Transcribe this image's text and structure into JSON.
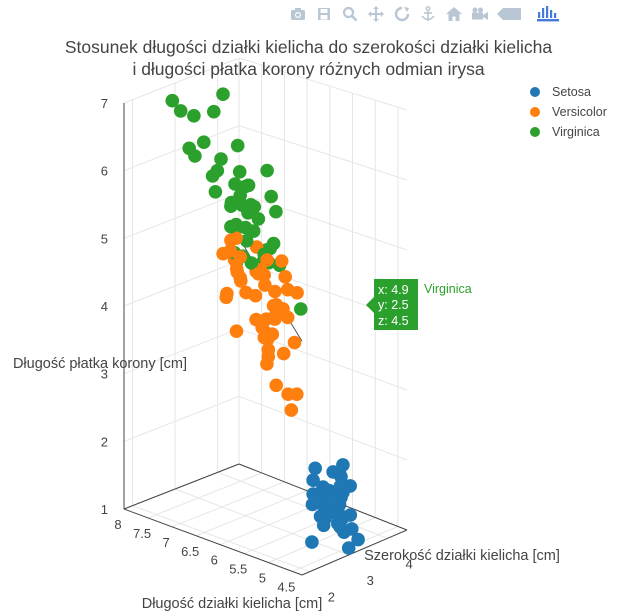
{
  "title": {
    "line1": "Stosunek długości działki kielicha do szerokości działki kielicha",
    "line2": "i długości płatka korony różnych odmian irysa"
  },
  "modebar": {
    "buttons": [
      {
        "name": "camera-icon"
      },
      {
        "name": "save-icon"
      },
      {
        "name": "zoom-icon"
      },
      {
        "name": "pan-icon"
      },
      {
        "name": "orbit-rotation-icon"
      },
      {
        "name": "turntable-rotation-icon"
      },
      {
        "name": "home-icon"
      },
      {
        "name": "camera-view-icon"
      },
      {
        "name": "hover-icon"
      },
      {
        "name": "plotly-logo-icon"
      }
    ],
    "colors": {
      "icon": "#b9c6d3",
      "brand": "#447adb"
    }
  },
  "legend": [
    {
      "label": "Setosa",
      "color": "#1f77b4"
    },
    {
      "label": "Versicolor",
      "color": "#ff7f0e"
    },
    {
      "label": "Virginica",
      "color": "#2ca02c"
    }
  ],
  "tooltip": {
    "x": "x: 4.9",
    "y": "y: 2.5",
    "z": "z: 4.5",
    "series": "Virginica",
    "color": "#2ca02c"
  },
  "chart_data": {
    "type": "scatter",
    "subtype": "scatter3d",
    "xlabel": "Długość działki kielicha [cm]",
    "ylabel": "Szerokość działki kielicha [cm]",
    "zlabel": "Długość płatka korony [cm]",
    "x_ticks": [
      "8",
      "7.5",
      "7",
      "6.5",
      "6",
      "5.5",
      "5",
      "4.5"
    ],
    "y_ticks": [
      "2",
      "3",
      "4"
    ],
    "z_ticks": [
      "1",
      "2",
      "3",
      "4",
      "5",
      "6",
      "7"
    ],
    "xlim": [
      4.3,
      8.0
    ],
    "ylim": [
      1.8,
      4.5
    ],
    "zlim": [
      1,
      7
    ],
    "series": [
      {
        "name": "Setosa",
        "color": "#1f77b4",
        "points": [
          [
            5.1,
            3.5,
            1.4
          ],
          [
            4.9,
            3.0,
            1.4
          ],
          [
            4.7,
            3.2,
            1.3
          ],
          [
            4.6,
            3.1,
            1.5
          ],
          [
            5.0,
            3.6,
            1.4
          ],
          [
            5.4,
            3.9,
            1.7
          ],
          [
            4.6,
            3.4,
            1.4
          ],
          [
            5.0,
            3.4,
            1.5
          ],
          [
            4.4,
            2.9,
            1.4
          ],
          [
            4.9,
            3.1,
            1.5
          ],
          [
            5.4,
            3.7,
            1.5
          ],
          [
            4.8,
            3.4,
            1.6
          ],
          [
            4.8,
            3.0,
            1.4
          ],
          [
            4.3,
            3.0,
            1.1
          ],
          [
            5.8,
            4.0,
            1.2
          ],
          [
            5.7,
            4.4,
            1.5
          ],
          [
            5.4,
            3.9,
            1.3
          ],
          [
            5.1,
            3.5,
            1.4
          ],
          [
            5.7,
            3.8,
            1.7
          ],
          [
            5.1,
            3.8,
            1.5
          ],
          [
            5.4,
            3.4,
            1.7
          ],
          [
            5.1,
            3.7,
            1.5
          ],
          [
            4.6,
            3.6,
            1.0
          ],
          [
            5.1,
            3.3,
            1.7
          ],
          [
            4.8,
            3.4,
            1.9
          ],
          [
            5.0,
            3.0,
            1.6
          ],
          [
            5.0,
            3.4,
            1.6
          ],
          [
            5.2,
            3.5,
            1.5
          ],
          [
            5.2,
            3.4,
            1.4
          ],
          [
            4.7,
            3.2,
            1.6
          ],
          [
            4.8,
            3.1,
            1.6
          ],
          [
            5.4,
            3.4,
            1.5
          ],
          [
            5.2,
            4.1,
            1.5
          ],
          [
            5.5,
            4.2,
            1.4
          ],
          [
            4.9,
            3.1,
            1.5
          ],
          [
            5.0,
            3.2,
            1.2
          ],
          [
            5.5,
            3.5,
            1.3
          ],
          [
            4.4,
            3.0,
            1.3
          ],
          [
            5.1,
            3.4,
            1.5
          ],
          [
            5.0,
            3.5,
            1.3
          ],
          [
            4.5,
            2.3,
            1.3
          ],
          [
            4.4,
            3.2,
            1.3
          ],
          [
            5.0,
            3.5,
            1.6
          ],
          [
            5.1,
            3.8,
            1.9
          ],
          [
            4.8,
            3.0,
            1.4
          ],
          [
            5.1,
            3.8,
            1.6
          ],
          [
            4.6,
            3.2,
            1.4
          ],
          [
            5.3,
            3.7,
            1.5
          ],
          [
            5.0,
            3.3,
            1.4
          ]
        ]
      },
      {
        "name": "Versicolor",
        "color": "#ff7f0e",
        "points": [
          [
            7.0,
            3.2,
            4.7
          ],
          [
            6.4,
            3.2,
            4.5
          ],
          [
            6.9,
            3.1,
            4.9
          ],
          [
            5.5,
            2.3,
            4.0
          ],
          [
            6.5,
            2.8,
            4.6
          ],
          [
            5.7,
            2.8,
            4.5
          ],
          [
            6.3,
            3.3,
            4.7
          ],
          [
            4.9,
            2.4,
            3.3
          ],
          [
            6.6,
            2.9,
            4.6
          ],
          [
            5.2,
            2.7,
            3.9
          ],
          [
            5.0,
            2.0,
            3.5
          ],
          [
            5.9,
            3.0,
            4.2
          ],
          [
            6.0,
            2.2,
            4.0
          ],
          [
            6.1,
            2.9,
            4.7
          ],
          [
            5.6,
            2.9,
            3.6
          ],
          [
            6.7,
            3.1,
            4.4
          ],
          [
            5.6,
            3.0,
            4.5
          ],
          [
            5.8,
            2.7,
            4.1
          ],
          [
            6.2,
            2.2,
            4.5
          ],
          [
            5.6,
            2.5,
            3.9
          ],
          [
            5.9,
            3.2,
            4.8
          ],
          [
            6.1,
            2.8,
            4.0
          ],
          [
            6.3,
            2.5,
            4.9
          ],
          [
            6.1,
            2.8,
            4.7
          ],
          [
            6.4,
            2.9,
            4.3
          ],
          [
            6.6,
            3.0,
            4.4
          ],
          [
            6.8,
            2.8,
            4.8
          ],
          [
            6.7,
            3.0,
            5.0
          ],
          [
            6.0,
            2.9,
            4.5
          ],
          [
            5.7,
            2.6,
            3.5
          ],
          [
            5.5,
            2.4,
            3.8
          ],
          [
            5.5,
            2.4,
            3.7
          ],
          [
            5.8,
            2.7,
            3.9
          ],
          [
            6.0,
            2.7,
            5.1
          ],
          [
            5.4,
            3.0,
            4.5
          ],
          [
            6.0,
            3.4,
            4.5
          ],
          [
            6.7,
            3.1,
            4.7
          ],
          [
            6.3,
            2.3,
            4.4
          ],
          [
            5.6,
            3.0,
            4.1
          ],
          [
            5.5,
            2.5,
            4.0
          ],
          [
            5.5,
            2.6,
            4.4
          ],
          [
            6.1,
            3.0,
            4.6
          ],
          [
            5.8,
            2.6,
            4.0
          ],
          [
            5.0,
            2.3,
            3.3
          ],
          [
            5.6,
            2.7,
            4.2
          ],
          [
            5.7,
            3.0,
            4.2
          ],
          [
            5.7,
            2.9,
            4.2
          ],
          [
            6.2,
            2.9,
            4.3
          ],
          [
            5.1,
            2.5,
            3.0
          ],
          [
            5.7,
            2.8,
            4.1
          ]
        ]
      },
      {
        "name": "Virginica",
        "color": "#2ca02c",
        "points": [
          [
            6.3,
            3.3,
            6.0
          ],
          [
            5.8,
            2.7,
            5.1
          ],
          [
            7.1,
            3.0,
            5.9
          ],
          [
            6.3,
            2.9,
            5.6
          ],
          [
            6.5,
            3.0,
            5.8
          ],
          [
            7.6,
            3.0,
            6.6
          ],
          [
            4.9,
            2.5,
            4.5
          ],
          [
            7.3,
            2.9,
            6.3
          ],
          [
            6.7,
            2.5,
            5.8
          ],
          [
            7.2,
            3.6,
            6.1
          ],
          [
            6.5,
            3.2,
            5.1
          ],
          [
            6.4,
            2.7,
            5.3
          ],
          [
            6.8,
            3.0,
            5.5
          ],
          [
            5.7,
            2.5,
            5.0
          ],
          [
            5.8,
            2.8,
            5.1
          ],
          [
            6.4,
            3.2,
            5.3
          ],
          [
            6.5,
            3.0,
            5.5
          ],
          [
            7.7,
            3.8,
            6.7
          ],
          [
            7.7,
            2.6,
            6.9
          ],
          [
            6.0,
            2.2,
            5.0
          ],
          [
            6.9,
            3.2,
            5.7
          ],
          [
            5.6,
            2.8,
            4.9
          ],
          [
            7.7,
            2.8,
            6.7
          ],
          [
            6.3,
            2.7,
            4.9
          ],
          [
            6.7,
            3.3,
            5.7
          ],
          [
            7.2,
            3.2,
            6.0
          ],
          [
            6.2,
            2.8,
            4.8
          ],
          [
            6.1,
            3.0,
            4.9
          ],
          [
            6.4,
            2.8,
            5.6
          ],
          [
            7.2,
            3.0,
            5.8
          ],
          [
            7.4,
            2.8,
            6.1
          ],
          [
            7.9,
            3.8,
            6.4
          ],
          [
            6.4,
            2.8,
            5.6
          ],
          [
            6.3,
            2.8,
            5.1
          ],
          [
            6.1,
            2.6,
            5.6
          ],
          [
            7.7,
            3.0,
            6.1
          ],
          [
            6.3,
            3.4,
            5.6
          ],
          [
            6.4,
            3.1,
            5.5
          ],
          [
            6.0,
            3.0,
            4.8
          ],
          [
            6.9,
            3.1,
            5.4
          ],
          [
            6.7,
            3.1,
            5.6
          ],
          [
            6.9,
            3.1,
            5.1
          ],
          [
            6.8,
            3.2,
            5.9
          ],
          [
            6.7,
            3.3,
            5.7
          ],
          [
            6.7,
            3.0,
            5.2
          ],
          [
            6.3,
            2.5,
            5.0
          ],
          [
            6.5,
            3.0,
            5.2
          ],
          [
            6.2,
            3.4,
            5.4
          ],
          [
            5.9,
            3.0,
            5.1
          ]
        ]
      }
    ]
  }
}
